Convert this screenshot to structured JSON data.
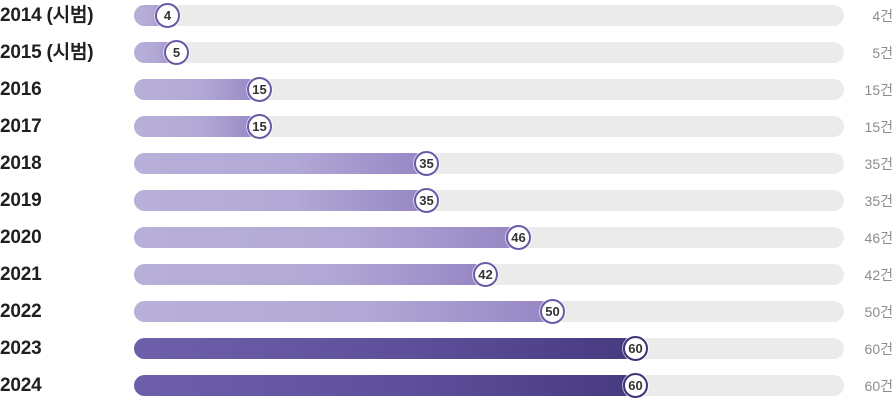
{
  "chart_data": {
    "type": "bar",
    "orientation": "horizontal",
    "categories": [
      "2014 (시범)",
      "2015 (시범)",
      "2016",
      "2017",
      "2018",
      "2019",
      "2020",
      "2021",
      "2022",
      "2023",
      "2024"
    ],
    "values": [
      4,
      5,
      15,
      15,
      35,
      35,
      46,
      42,
      50,
      60,
      60
    ],
    "value_labels": [
      "4",
      "5",
      "15",
      "15",
      "35",
      "35",
      "46",
      "42",
      "50",
      "60",
      "60"
    ],
    "count_labels": [
      "4건",
      "5건",
      "15건",
      "15건",
      "35건",
      "35건",
      "46건",
      "42건",
      "50건",
      "60건",
      "60건"
    ],
    "highlight": [
      false,
      false,
      false,
      false,
      false,
      false,
      false,
      false,
      false,
      true,
      true
    ],
    "xlim": [
      0,
      85
    ],
    "grid": false,
    "legend": "none"
  },
  "colors": {
    "track": "#ebebeb",
    "bar_light": "#b2a8d6",
    "bar_dark": "#5e4f9b",
    "bubble_border": "#6a5aa6",
    "label_text": "#1f1f1f",
    "count_text": "#8c8c8c"
  }
}
